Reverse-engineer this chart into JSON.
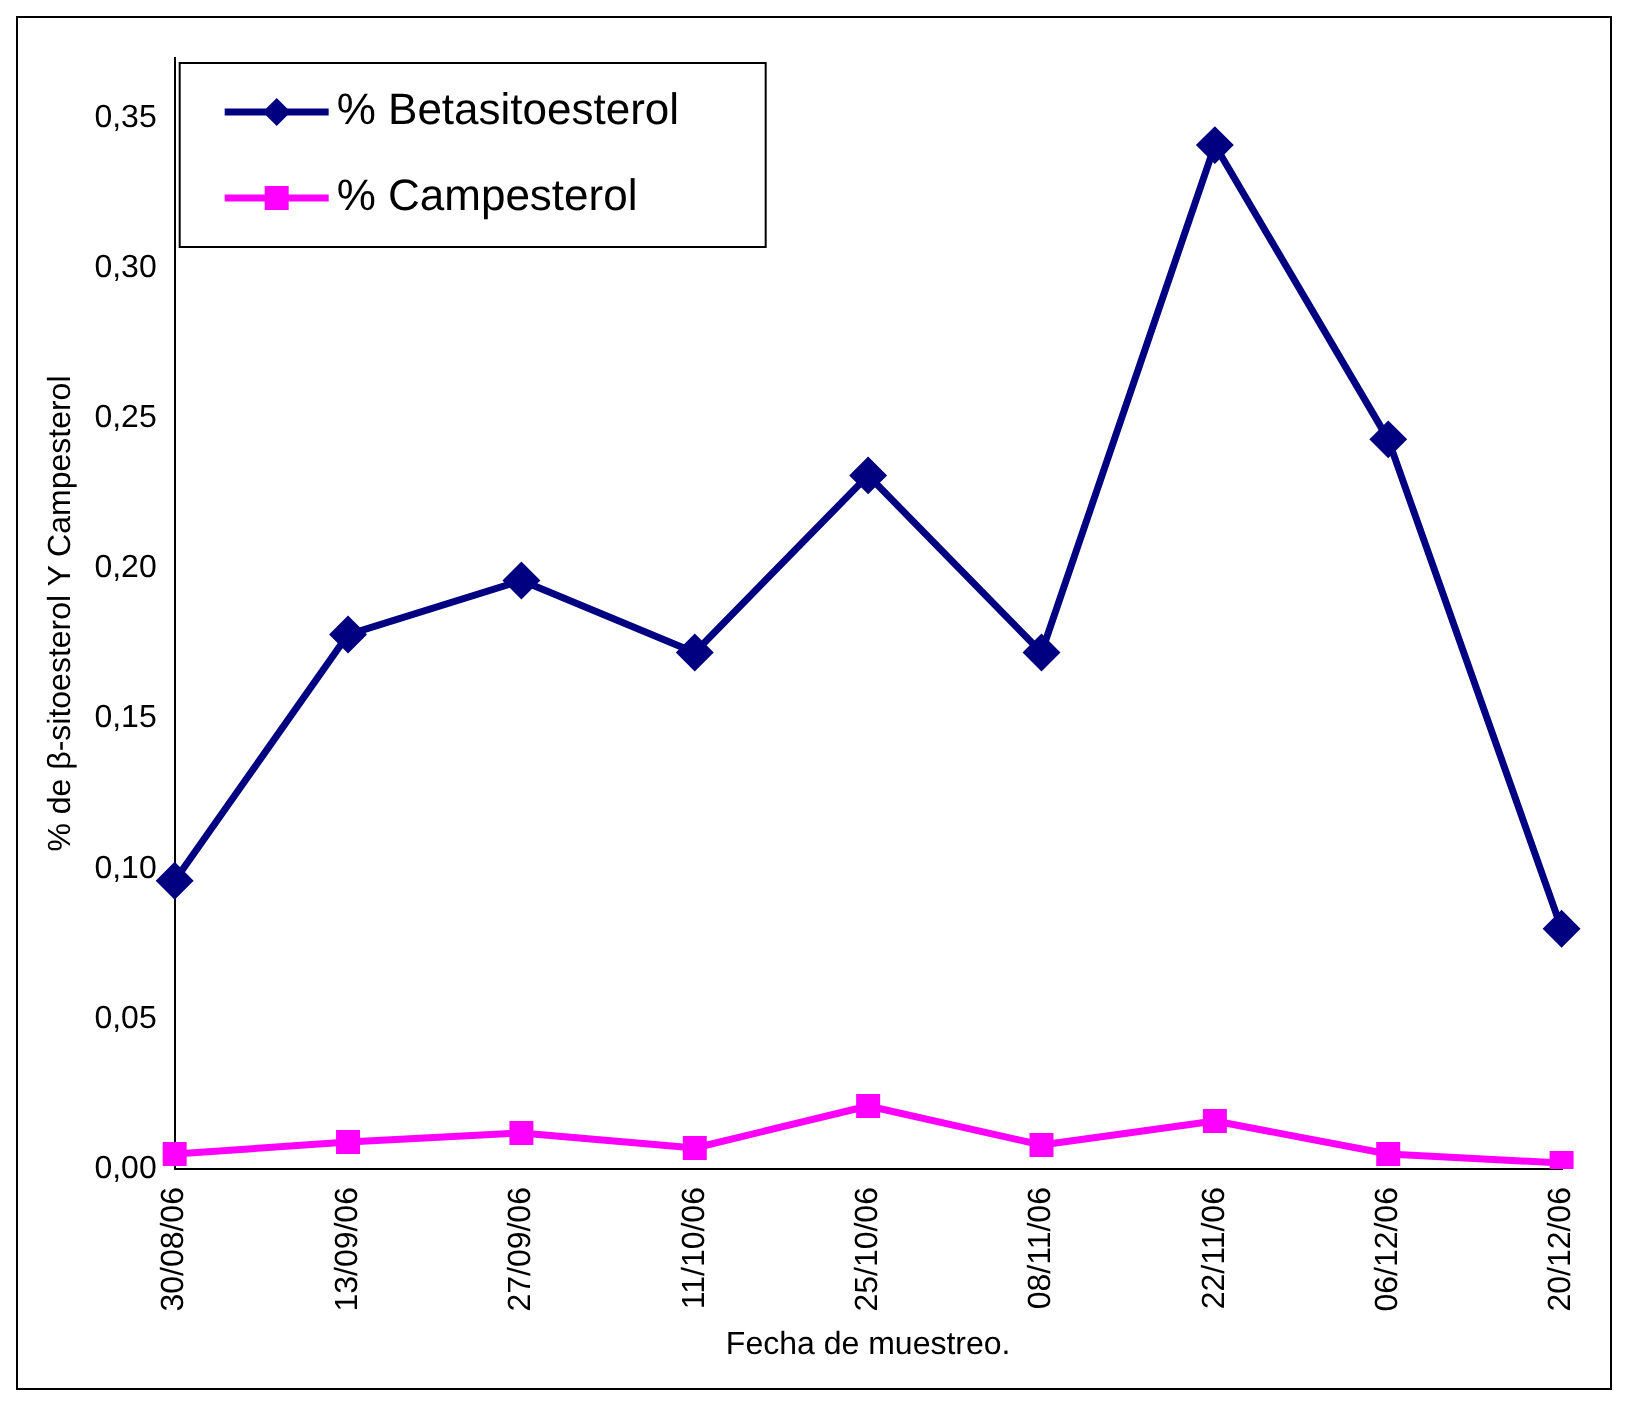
{
  "chart_data": {
    "type": "line",
    "xlabel": "Fecha de muestreo.",
    "ylabel": "% de β-sitoesterol Y Campesterol",
    "categories": [
      "30/08/06",
      "13/09/06",
      "27/09/06",
      "11/10/06",
      "25/10/06",
      "08/11/06",
      "22/11/06",
      "06/12/06",
      "20/12/06"
    ],
    "series": [
      {
        "name": "% Betasitoesterol",
        "color": "#000080",
        "marker": "diamond",
        "values": [
          0.096,
          0.178,
          0.196,
          0.172,
          0.231,
          0.172,
          0.341,
          0.243,
          0.08
        ]
      },
      {
        "name": "% Campesterol",
        "color": "#ff00ff",
        "marker": "square",
        "values": [
          0.005,
          0.009,
          0.012,
          0.007,
          0.021,
          0.008,
          0.016,
          0.005,
          0.002
        ]
      }
    ],
    "ylim": [
      0,
      0.37
    ],
    "yticks": [
      {
        "value": 0,
        "label": "0,00"
      },
      {
        "value": 0.05,
        "label": "0,05"
      },
      {
        "value": 0.1,
        "label": "0,10"
      },
      {
        "value": 0.15,
        "label": "0,15"
      },
      {
        "value": 0.2,
        "label": "0,20"
      },
      {
        "value": 0.25,
        "label": "0,25"
      },
      {
        "value": 0.3,
        "label": "0,30"
      },
      {
        "value": 0.35,
        "label": "0,35"
      }
    ],
    "grid": false,
    "legend": "top left"
  }
}
